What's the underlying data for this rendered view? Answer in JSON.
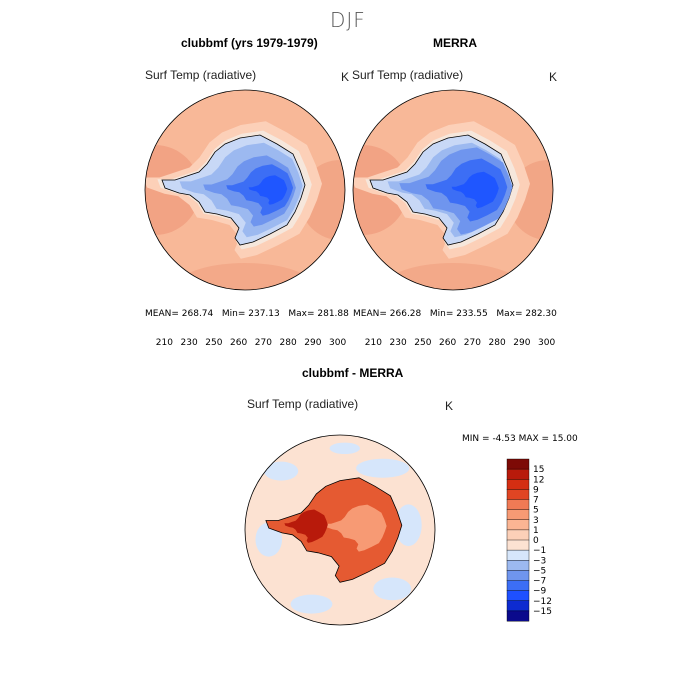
{
  "main_title": "DJF",
  "colors": {
    "cool": [
      "#0a0a8c",
      "#0d2bd0",
      "#1e50ff",
      "#3c6ef5",
      "#6f95ee",
      "#9cb9f0",
      "#c8d8f6"
    ],
    "warm": [
      "#f2ddd0",
      "#fcd0b8",
      "#fbb593",
      "#f79a74",
      "#f07a55",
      "#e04523",
      "#b81a0b",
      "#7d0a06"
    ],
    "ocean": "#f8b898",
    "ocean_edge": "#f09e7f",
    "antarctica_center": "#1f56ff",
    "diff_bg": "#fce2d2",
    "diff_light_blue": "#d6e6fb",
    "diff_land": "#e55a32"
  },
  "chart_data": [
    {
      "type": "heatmap",
      "title": "clubbmf (yrs 1979-1979)",
      "variable": "Surf Temp (radiative)",
      "units": "K",
      "mean_label": "MEAN=",
      "mean": "268.74",
      "min_label": "Min=",
      "min": "237.13",
      "max_label": "Max=",
      "max": "281.88",
      "colorbar_ticks": [
        "210",
        "230",
        "250",
        "260",
        "270",
        "280",
        "290",
        "300"
      ]
    },
    {
      "type": "heatmap",
      "title": "MERRA",
      "variable": "Surf Temp (radiative)",
      "units": "K",
      "mean_label": "MEAN=",
      "mean": "266.28",
      "min_label": "Min=",
      "min": "233.55",
      "max_label": "Max=",
      "max": "282.30",
      "colorbar_ticks": [
        "210",
        "230",
        "250",
        "260",
        "270",
        "280",
        "290",
        "300"
      ]
    },
    {
      "type": "heatmap",
      "title": "clubbmf - MERRA",
      "variable": "Surf Temp (radiative)",
      "units": "K",
      "min_label": "MIN =",
      "min": "-4.53",
      "max_label": "MAX =",
      "max": "15.00",
      "colorbar_ticks": [
        "15",
        "12",
        "9",
        "7",
        "5",
        "3",
        "1",
        "0",
        "−1",
        "−3",
        "−5",
        "−7",
        "−9",
        "−12",
        "−15"
      ],
      "colorbar_colors": [
        "#7d0a06",
        "#b81a0b",
        "#d42e12",
        "#e04523",
        "#f07a55",
        "#f79a74",
        "#fbb593",
        "#fcd0b8",
        "#fce2d2",
        "#d6e6fb",
        "#9cb9f0",
        "#6f95ee",
        "#3c6ef5",
        "#1e50ff",
        "#0d2bd0",
        "#0a0a8c"
      ]
    }
  ]
}
